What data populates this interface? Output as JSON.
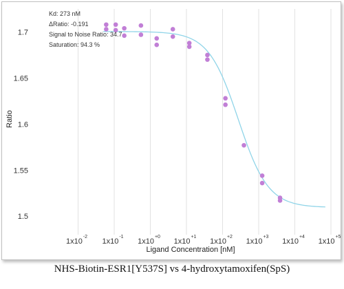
{
  "chart_data": {
    "type": "scatter",
    "xlabel": "Ligand Concentration [nM]",
    "ylabel": "Ratio",
    "x_scale": "log",
    "xlim": [
      0.001,
      100000
    ],
    "ylim": [
      1.48,
      1.725
    ],
    "grid": "vertical",
    "x_ticks": [
      {
        "value": 0.01,
        "base": "1x10",
        "exp": "-2"
      },
      {
        "value": 0.1,
        "base": "1x10",
        "exp": "-1"
      },
      {
        "value": 1,
        "base": "1x10",
        "exp": "+0"
      },
      {
        "value": 10,
        "base": "1x10",
        "exp": "+1"
      },
      {
        "value": 100,
        "base": "1x10",
        "exp": "+2"
      },
      {
        "value": 1000,
        "base": "1x10",
        "exp": "+3"
      },
      {
        "value": 10000,
        "base": "1x10",
        "exp": "+4"
      },
      {
        "value": 100000,
        "base": "1x10",
        "exp": "+5"
      }
    ],
    "y_ticks": [
      "1.7",
      "1.65",
      "1.6",
      "1.55",
      "1.5"
    ],
    "points": [
      {
        "x": 0.06,
        "y": 1.708
      },
      {
        "x": 0.06,
        "y": 1.703
      },
      {
        "x": 0.11,
        "y": 1.708
      },
      {
        "x": 0.11,
        "y": 1.702
      },
      {
        "x": 0.19,
        "y": 1.704
      },
      {
        "x": 0.19,
        "y": 1.696
      },
      {
        "x": 0.55,
        "y": 1.707
      },
      {
        "x": 0.55,
        "y": 1.697
      },
      {
        "x": 1.5,
        "y": 1.693
      },
      {
        "x": 1.5,
        "y": 1.686
      },
      {
        "x": 4.2,
        "y": 1.703
      },
      {
        "x": 4.2,
        "y": 1.695
      },
      {
        "x": 12,
        "y": 1.688
      },
      {
        "x": 12,
        "y": 1.684
      },
      {
        "x": 38,
        "y": 1.675
      },
      {
        "x": 38,
        "y": 1.67
      },
      {
        "x": 120,
        "y": 1.628
      },
      {
        "x": 120,
        "y": 1.621
      },
      {
        "x": 390,
        "y": 1.577
      },
      {
        "x": 1250,
        "y": 1.544
      },
      {
        "x": 1250,
        "y": 1.536
      },
      {
        "x": 3900,
        "y": 1.52
      },
      {
        "x": 3900,
        "y": 1.517
      }
    ],
    "fit": {
      "top": 1.7005,
      "bottom": 1.5095,
      "ec50": 273,
      "hill": 1.05
    },
    "colors": {
      "points": "#c17fd6",
      "fit": "#8fd4e8",
      "grid": "#e2e2e2"
    }
  },
  "stats": {
    "kd": "Kd: 273 nM",
    "dratio": "ΔRatio: -0.191",
    "snr": "Signal to Noise Ratio: 34.7",
    "saturation": "Saturation: 94.3 %"
  },
  "caption": "NHS-Biotin-ESR1[Y537S]  vs  4-hydroxytamoxifen(SpS)"
}
